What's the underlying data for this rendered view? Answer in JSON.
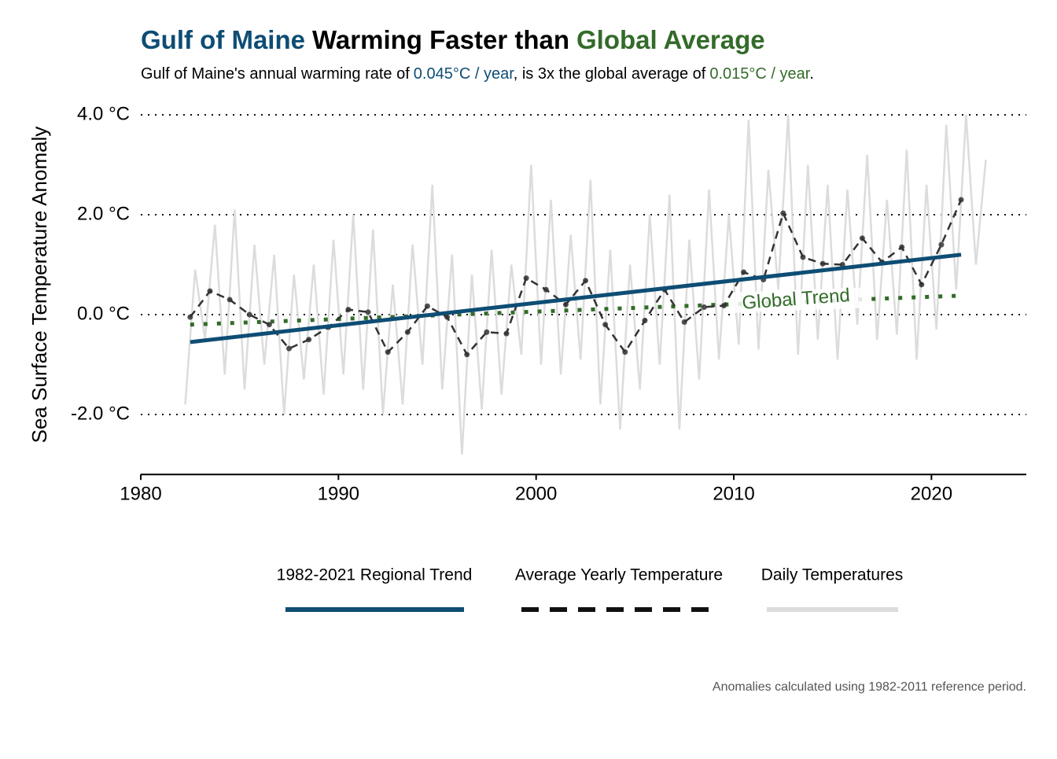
{
  "chart_data": {
    "type": "line",
    "title": [
      {
        "text": "Gulf of Maine",
        "color": "#0e4d74"
      },
      {
        "text": "Warming Faster than",
        "color": "#000000"
      },
      {
        "text": "Global Average",
        "color": "#336b2a"
      }
    ],
    "subtitle": [
      {
        "text": "Gulf of Maine's annual warming rate of",
        "color": "#000000"
      },
      {
        "text": "0.045°C / year",
        "color": "#0e4d74"
      },
      {
        "text": ", is 3x the global average of",
        "color": "#000000"
      },
      {
        "text": "0.015°C / year",
        "color": "#336b2a"
      },
      {
        "text": ".",
        "color": "#000000"
      }
    ],
    "y_label": "Sea Surface Temperature Anomaly",
    "caption": "Anomalies calculated using 1982-2011 reference period.",
    "xlim": [
      1980,
      2024.8
    ],
    "xticks": [
      1980,
      1990,
      2000,
      2010,
      2020
    ],
    "ylim": [
      -3.2,
      4.1
    ],
    "yticks": [
      {
        "value": -2,
        "label": "-2.0 °C"
      },
      {
        "value": 0,
        "label": "0.0 °C"
      },
      {
        "value": 2,
        "label": "2.0 °C"
      },
      {
        "value": 4,
        "label": "4.0 °C"
      }
    ],
    "grid": true,
    "series": [
      {
        "name": "Daily Temperatures",
        "color": "#dcdcdc",
        "style": "solid",
        "legend": true,
        "x": [
          1982.25,
          1982.75,
          1983.25,
          1983.75,
          1984.25,
          1984.75,
          1985.25,
          1985.75,
          1986.25,
          1986.75,
          1987.25,
          1987.75,
          1988.25,
          1988.75,
          1989.25,
          1989.75,
          1990.25,
          1990.75,
          1991.25,
          1991.75,
          1992.25,
          1992.75,
          1993.25,
          1993.75,
          1994.25,
          1994.75,
          1995.25,
          1995.75,
          1996.25,
          1996.75,
          1997.25,
          1997.75,
          1998.25,
          1998.75,
          1999.25,
          1999.75,
          2000.25,
          2000.75,
          2001.25,
          2001.75,
          2002.25,
          2002.75,
          2003.25,
          2003.75,
          2004.25,
          2004.75,
          2005.25,
          2005.75,
          2006.25,
          2006.75,
          2007.25,
          2007.75,
          2008.25,
          2008.75,
          2009.25,
          2009.75,
          2010.25,
          2010.75,
          2011.25,
          2011.75,
          2012.25,
          2012.75,
          2013.25,
          2013.75,
          2014.25,
          2014.75,
          2015.25,
          2015.75,
          2016.25,
          2016.75,
          2017.25,
          2017.75,
          2018.25,
          2018.75,
          2019.25,
          2019.75,
          2020.25,
          2020.75,
          2021.25,
          2021.75,
          2022.25,
          2022.75
        ],
        "values": [
          -1.8,
          0.9,
          -0.5,
          1.8,
          -1.2,
          2.1,
          -1.5,
          1.4,
          -1.0,
          1.2,
          -2.0,
          0.8,
          -1.3,
          1.0,
          -1.6,
          1.5,
          -1.2,
          2.0,
          -1.5,
          1.7,
          -2.0,
          0.6,
          -1.8,
          1.4,
          -1.0,
          2.6,
          -1.5,
          1.2,
          -2.8,
          0.8,
          -1.9,
          1.3,
          -1.6,
          1.0,
          -0.8,
          3.0,
          -1.0,
          2.3,
          -1.2,
          1.6,
          -0.9,
          2.7,
          -1.8,
          1.3,
          -2.3,
          1.0,
          -1.5,
          2.0,
          -1.0,
          2.4,
          -2.3,
          1.5,
          -1.3,
          2.5,
          -0.9,
          2.0,
          -0.6,
          3.9,
          -0.7,
          2.9,
          0.5,
          4.0,
          -0.8,
          3.0,
          -0.5,
          2.6,
          -0.9,
          2.5,
          -0.2,
          3.2,
          -0.5,
          2.3,
          -0.4,
          3.3,
          -0.9,
          2.6,
          -0.3,
          3.8,
          0.5,
          4.0,
          1.0,
          3.1
        ]
      },
      {
        "name": "Global Trend",
        "color": "#336b2a",
        "style": "dotted",
        "legend": false,
        "x": [
          1982.5,
          2021.5
        ],
        "values": [
          -0.2,
          0.38
        ]
      },
      {
        "name": "Average Yearly Temperature",
        "color": "#333333",
        "style": "dashed",
        "legend": true,
        "x": [
          1982.5,
          1983.5,
          1984.5,
          1985.5,
          1986.5,
          1987.5,
          1988.5,
          1989.5,
          1990.5,
          1991.5,
          1992.5,
          1993.5,
          1994.5,
          1995.5,
          1996.5,
          1997.5,
          1998.5,
          1999.5,
          2000.5,
          2001.5,
          2002.5,
          2003.5,
          2004.5,
          2005.5,
          2006.5,
          2007.5,
          2008.5,
          2009.5,
          2010.5,
          2011.5,
          2012.5,
          2013.5,
          2014.5,
          2015.5,
          2016.5,
          2017.5,
          2018.5,
          2019.5,
          2020.5,
          2021.5
        ],
        "values": [
          -0.05,
          0.47,
          0.3,
          0.0,
          -0.2,
          -0.68,
          -0.5,
          -0.25,
          0.1,
          0.05,
          -0.75,
          -0.35,
          0.17,
          -0.05,
          -0.8,
          -0.35,
          -0.38,
          0.73,
          0.5,
          0.2,
          0.68,
          -0.2,
          -0.75,
          -0.12,
          0.5,
          -0.15,
          0.15,
          0.18,
          0.85,
          0.7,
          2.03,
          1.15,
          1.02,
          1.0,
          1.53,
          1.05,
          1.35,
          0.6,
          1.4,
          2.3
        ]
      },
      {
        "name": "1982-2021 Regional Trend",
        "color": "#0e4d74",
        "style": "solid",
        "legend": true,
        "x": [
          1982.5,
          2021.5
        ],
        "values": [
          -0.55,
          1.2
        ]
      }
    ]
  }
}
